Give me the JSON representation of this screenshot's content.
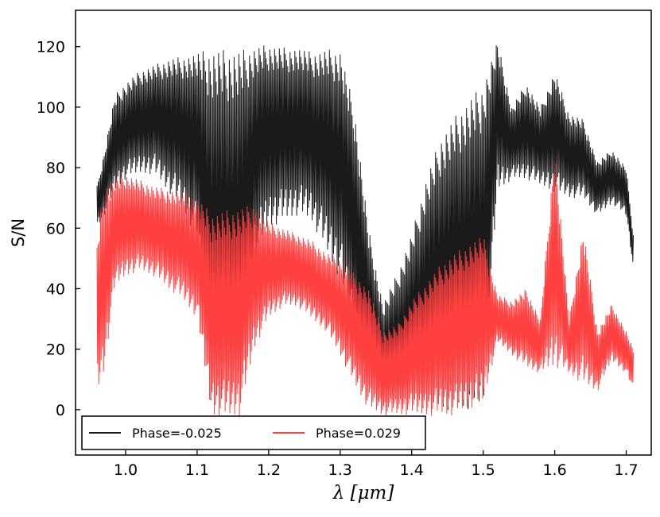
{
  "chart_data": {
    "type": "line",
    "title": "",
    "xlabel": "λ [μm]",
    "ylabel": "S/N",
    "xlim": [
      0.93,
      1.735
    ],
    "ylim": [
      -15,
      132
    ],
    "xticks": [
      1.0,
      1.1,
      1.2,
      1.3,
      1.4,
      1.5,
      1.6,
      1.7
    ],
    "xtick_labels": [
      "1.0",
      "1.1",
      "1.2",
      "1.3",
      "1.4",
      "1.5",
      "1.6",
      "1.7"
    ],
    "yticks": [
      0,
      20,
      40,
      60,
      80,
      100,
      120
    ],
    "ytick_labels": [
      "0",
      "20",
      "40",
      "60",
      "80",
      "100",
      "120"
    ],
    "grid": false,
    "legend_position": "lower-left",
    "series": [
      {
        "name": "Phase=-0.025",
        "color": "#1a1a1a",
        "upper_envelope": {
          "x": [
            0.96,
            0.97,
            0.985,
            1.0,
            1.02,
            1.04,
            1.06,
            1.08,
            1.1,
            1.12,
            1.14,
            1.16,
            1.18,
            1.2,
            1.22,
            1.24,
            1.26,
            1.28,
            1.3,
            1.32,
            1.34,
            1.36,
            1.38,
            1.4,
            1.42,
            1.44,
            1.46,
            1.48,
            1.5,
            1.52,
            1.54,
            1.56,
            1.58,
            1.6,
            1.62,
            1.64,
            1.66,
            1.68,
            1.7,
            1.71
          ],
          "y": [
            74,
            85,
            104,
            108,
            112,
            114,
            116,
            117,
            118,
            119,
            119,
            119,
            120,
            121,
            120,
            120,
            118,
            119,
            119,
            100,
            60,
            35,
            45,
            58,
            76,
            90,
            97,
            103,
            108,
            122,
            100,
            108,
            100,
            112,
            98,
            96,
            82,
            86,
            80,
            58
          ]
        },
        "lower_envelope": {
          "x": [
            0.96,
            0.97,
            0.985,
            1.0,
            1.02,
            1.04,
            1.06,
            1.08,
            1.1,
            1.12,
            1.14,
            1.16,
            1.18,
            1.2,
            1.22,
            1.24,
            1.26,
            1.28,
            1.3,
            1.32,
            1.34,
            1.36,
            1.38,
            1.4,
            1.42,
            1.44,
            1.46,
            1.48,
            1.5,
            1.52,
            1.54,
            1.56,
            1.58,
            1.6,
            1.62,
            1.64,
            1.66,
            1.68,
            1.7,
            1.71
          ],
          "y": [
            60,
            64,
            72,
            76,
            78,
            78,
            72,
            66,
            56,
            0,
            0,
            2,
            50,
            60,
            62,
            64,
            62,
            52,
            42,
            22,
            5,
            0,
            0,
            0,
            0,
            0,
            0,
            0,
            0,
            72,
            76,
            76,
            74,
            72,
            70,
            70,
            64,
            68,
            64,
            46
          ]
        }
      },
      {
        "name": "Phase=0.029",
        "color": "#ff4040",
        "upper_envelope": {
          "x": [
            0.96,
            0.97,
            0.985,
            1.0,
            1.02,
            1.04,
            1.06,
            1.08,
            1.1,
            1.12,
            1.14,
            1.16,
            1.18,
            1.2,
            1.22,
            1.24,
            1.26,
            1.28,
            1.3,
            1.32,
            1.34,
            1.36,
            1.38,
            1.4,
            1.42,
            1.44,
            1.46,
            1.48,
            1.5,
            1.52,
            1.54,
            1.56,
            1.58,
            1.6,
            1.62,
            1.64,
            1.66,
            1.68,
            1.7,
            1.71
          ],
          "y": [
            56,
            74,
            77,
            78,
            76,
            74,
            73,
            72,
            70,
            65,
            66,
            67,
            68,
            62,
            60,
            58,
            56,
            52,
            50,
            45,
            40,
            26,
            28,
            36,
            42,
            48,
            52,
            55,
            58,
            38,
            36,
            40,
            30,
            88,
            30,
            60,
            26,
            35,
            26,
            20
          ]
        },
        "lower_envelope": {
          "x": [
            0.96,
            0.97,
            0.985,
            1.0,
            1.02,
            1.04,
            1.06,
            1.08,
            1.1,
            1.12,
            1.14,
            1.16,
            1.18,
            1.2,
            1.22,
            1.24,
            1.26,
            1.28,
            1.3,
            1.32,
            1.34,
            1.36,
            1.38,
            1.4,
            1.42,
            1.44,
            1.46,
            1.48,
            1.5,
            1.52,
            1.54,
            1.56,
            1.58,
            1.6,
            1.62,
            1.64,
            1.66,
            1.68,
            1.7,
            1.71
          ],
          "y": [
            5,
            12,
            40,
            44,
            46,
            44,
            40,
            36,
            30,
            -2,
            -3,
            -2,
            20,
            30,
            34,
            34,
            30,
            26,
            18,
            8,
            0,
            -2,
            -2,
            -2,
            -2,
            -2,
            -2,
            0,
            2,
            22,
            18,
            14,
            12,
            14,
            12,
            8,
            6,
            16,
            12,
            6
          ]
        }
      }
    ]
  }
}
